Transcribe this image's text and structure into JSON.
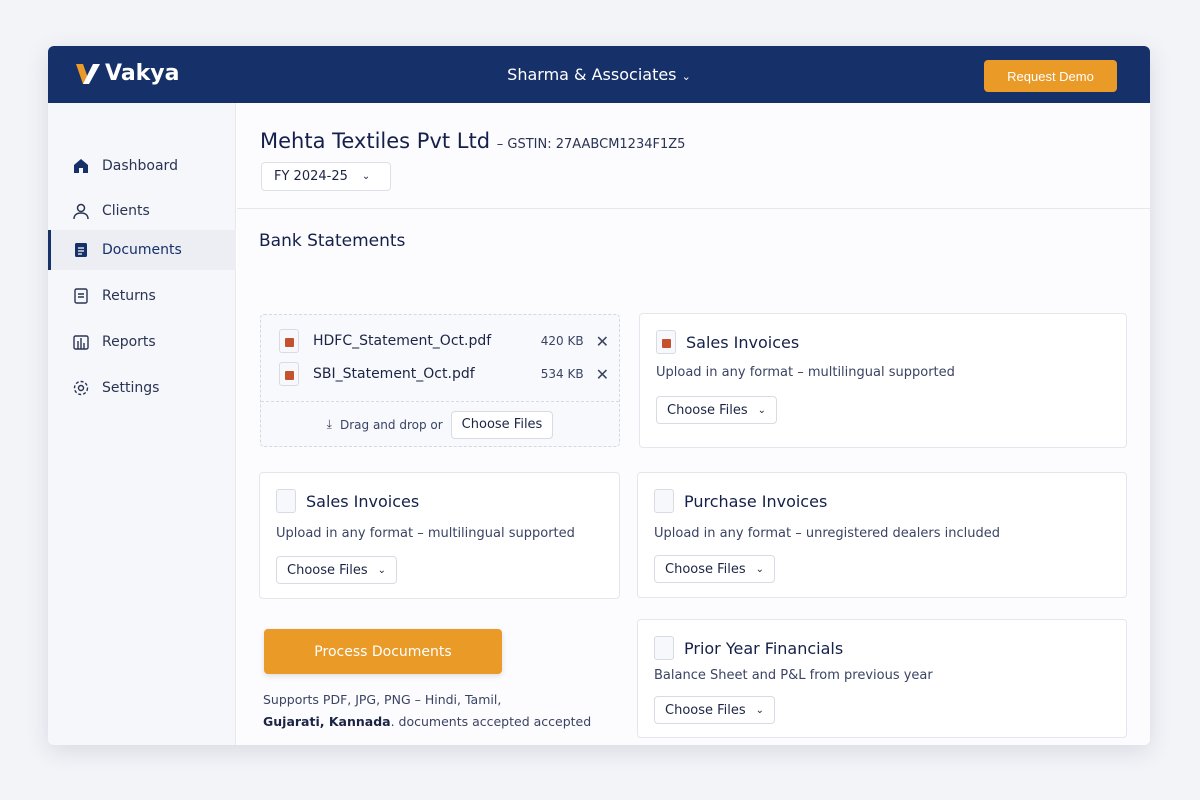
{
  "header": {
    "brand": "Vakya",
    "org": "Sharma & Associates",
    "request_demo": "Request Demo"
  },
  "sidebar": {
    "items": [
      {
        "label": "Dashboard"
      },
      {
        "label": "Clients"
      },
      {
        "label": "Documents",
        "active": true
      },
      {
        "label": "Returns"
      },
      {
        "label": "Reports"
      },
      {
        "label": "Settings"
      }
    ]
  },
  "client": {
    "name": "Mehta Textiles Pvt Ltd",
    "gstin": "– GSTIN: 27AABCM1234F1Z5",
    "fy": "FY 2024-25"
  },
  "bank": {
    "title": "Bank Statements",
    "files": [
      {
        "name": "HDFC_Statement_Oct.pdf",
        "size": "420 KB"
      },
      {
        "name": "SBI_Statement_Oct.pdf",
        "size": "534 KB"
      }
    ],
    "drop_text": "Drag and drop or",
    "choose": "Choose Files"
  },
  "cards": [
    {
      "title": "Sales Invoices",
      "desc": "Upload in any format – multilingual supported",
      "button": "Choose Files"
    },
    {
      "title": "Sales Invoices",
      "desc": "Upload in any format – multilingual supported",
      "button": "Choose Files"
    },
    {
      "title": "Purchase Invoices",
      "desc": "Upload in any format – unregistered dealers included",
      "button": "Choose Files"
    },
    {
      "title": "Prior Year Financials",
      "desc": "Balance Sheet and P&L from previous year",
      "button": "Choose Files"
    }
  ],
  "process": {
    "label": "Process Documents",
    "note_1": "Supports PDF, JPG, PNG – Hindi, Tamil,",
    "note_2_bold": "Gujarati, Kannada",
    "note_2": ". documents accepted accepted"
  },
  "colors": {
    "navy": "#16306a",
    "accent": "#ea9a27",
    "file_icon": "#c4522f"
  }
}
